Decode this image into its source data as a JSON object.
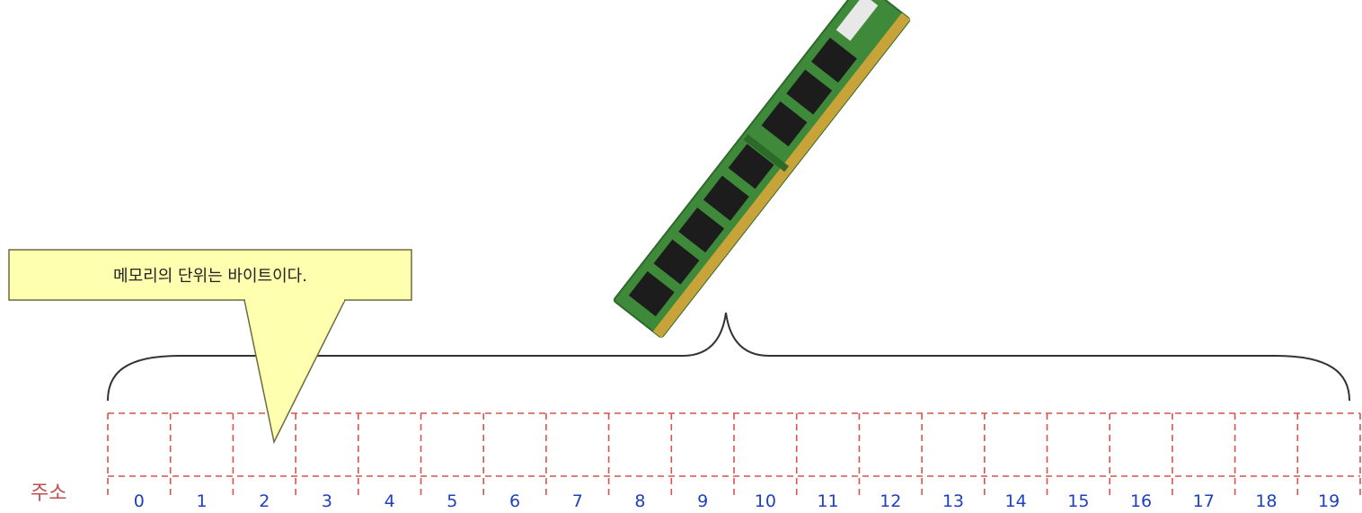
{
  "callout": {
    "text": "메모리의 단위는 바이트이다."
  },
  "memory": {
    "address_label": "주소",
    "cell_count": 20,
    "addresses": [
      "0",
      "1",
      "2",
      "3",
      "4",
      "5",
      "6",
      "7",
      "8",
      "9",
      "10",
      "11",
      "12",
      "13",
      "14",
      "15",
      "16",
      "17",
      "18",
      "19"
    ]
  },
  "colors": {
    "grid": "#d9534f",
    "address_text": "#1f3fbf",
    "address_title": "#c0504d",
    "callout_fill": "#ffffb0",
    "callout_stroke": "#6b6b40",
    "brace": "#333333",
    "ram_pcb": "#3f8a3a",
    "ram_chip": "#1c1c1c",
    "ram_contacts": "#c8a33a"
  },
  "icons": {
    "ram": "ram-module-icon"
  }
}
